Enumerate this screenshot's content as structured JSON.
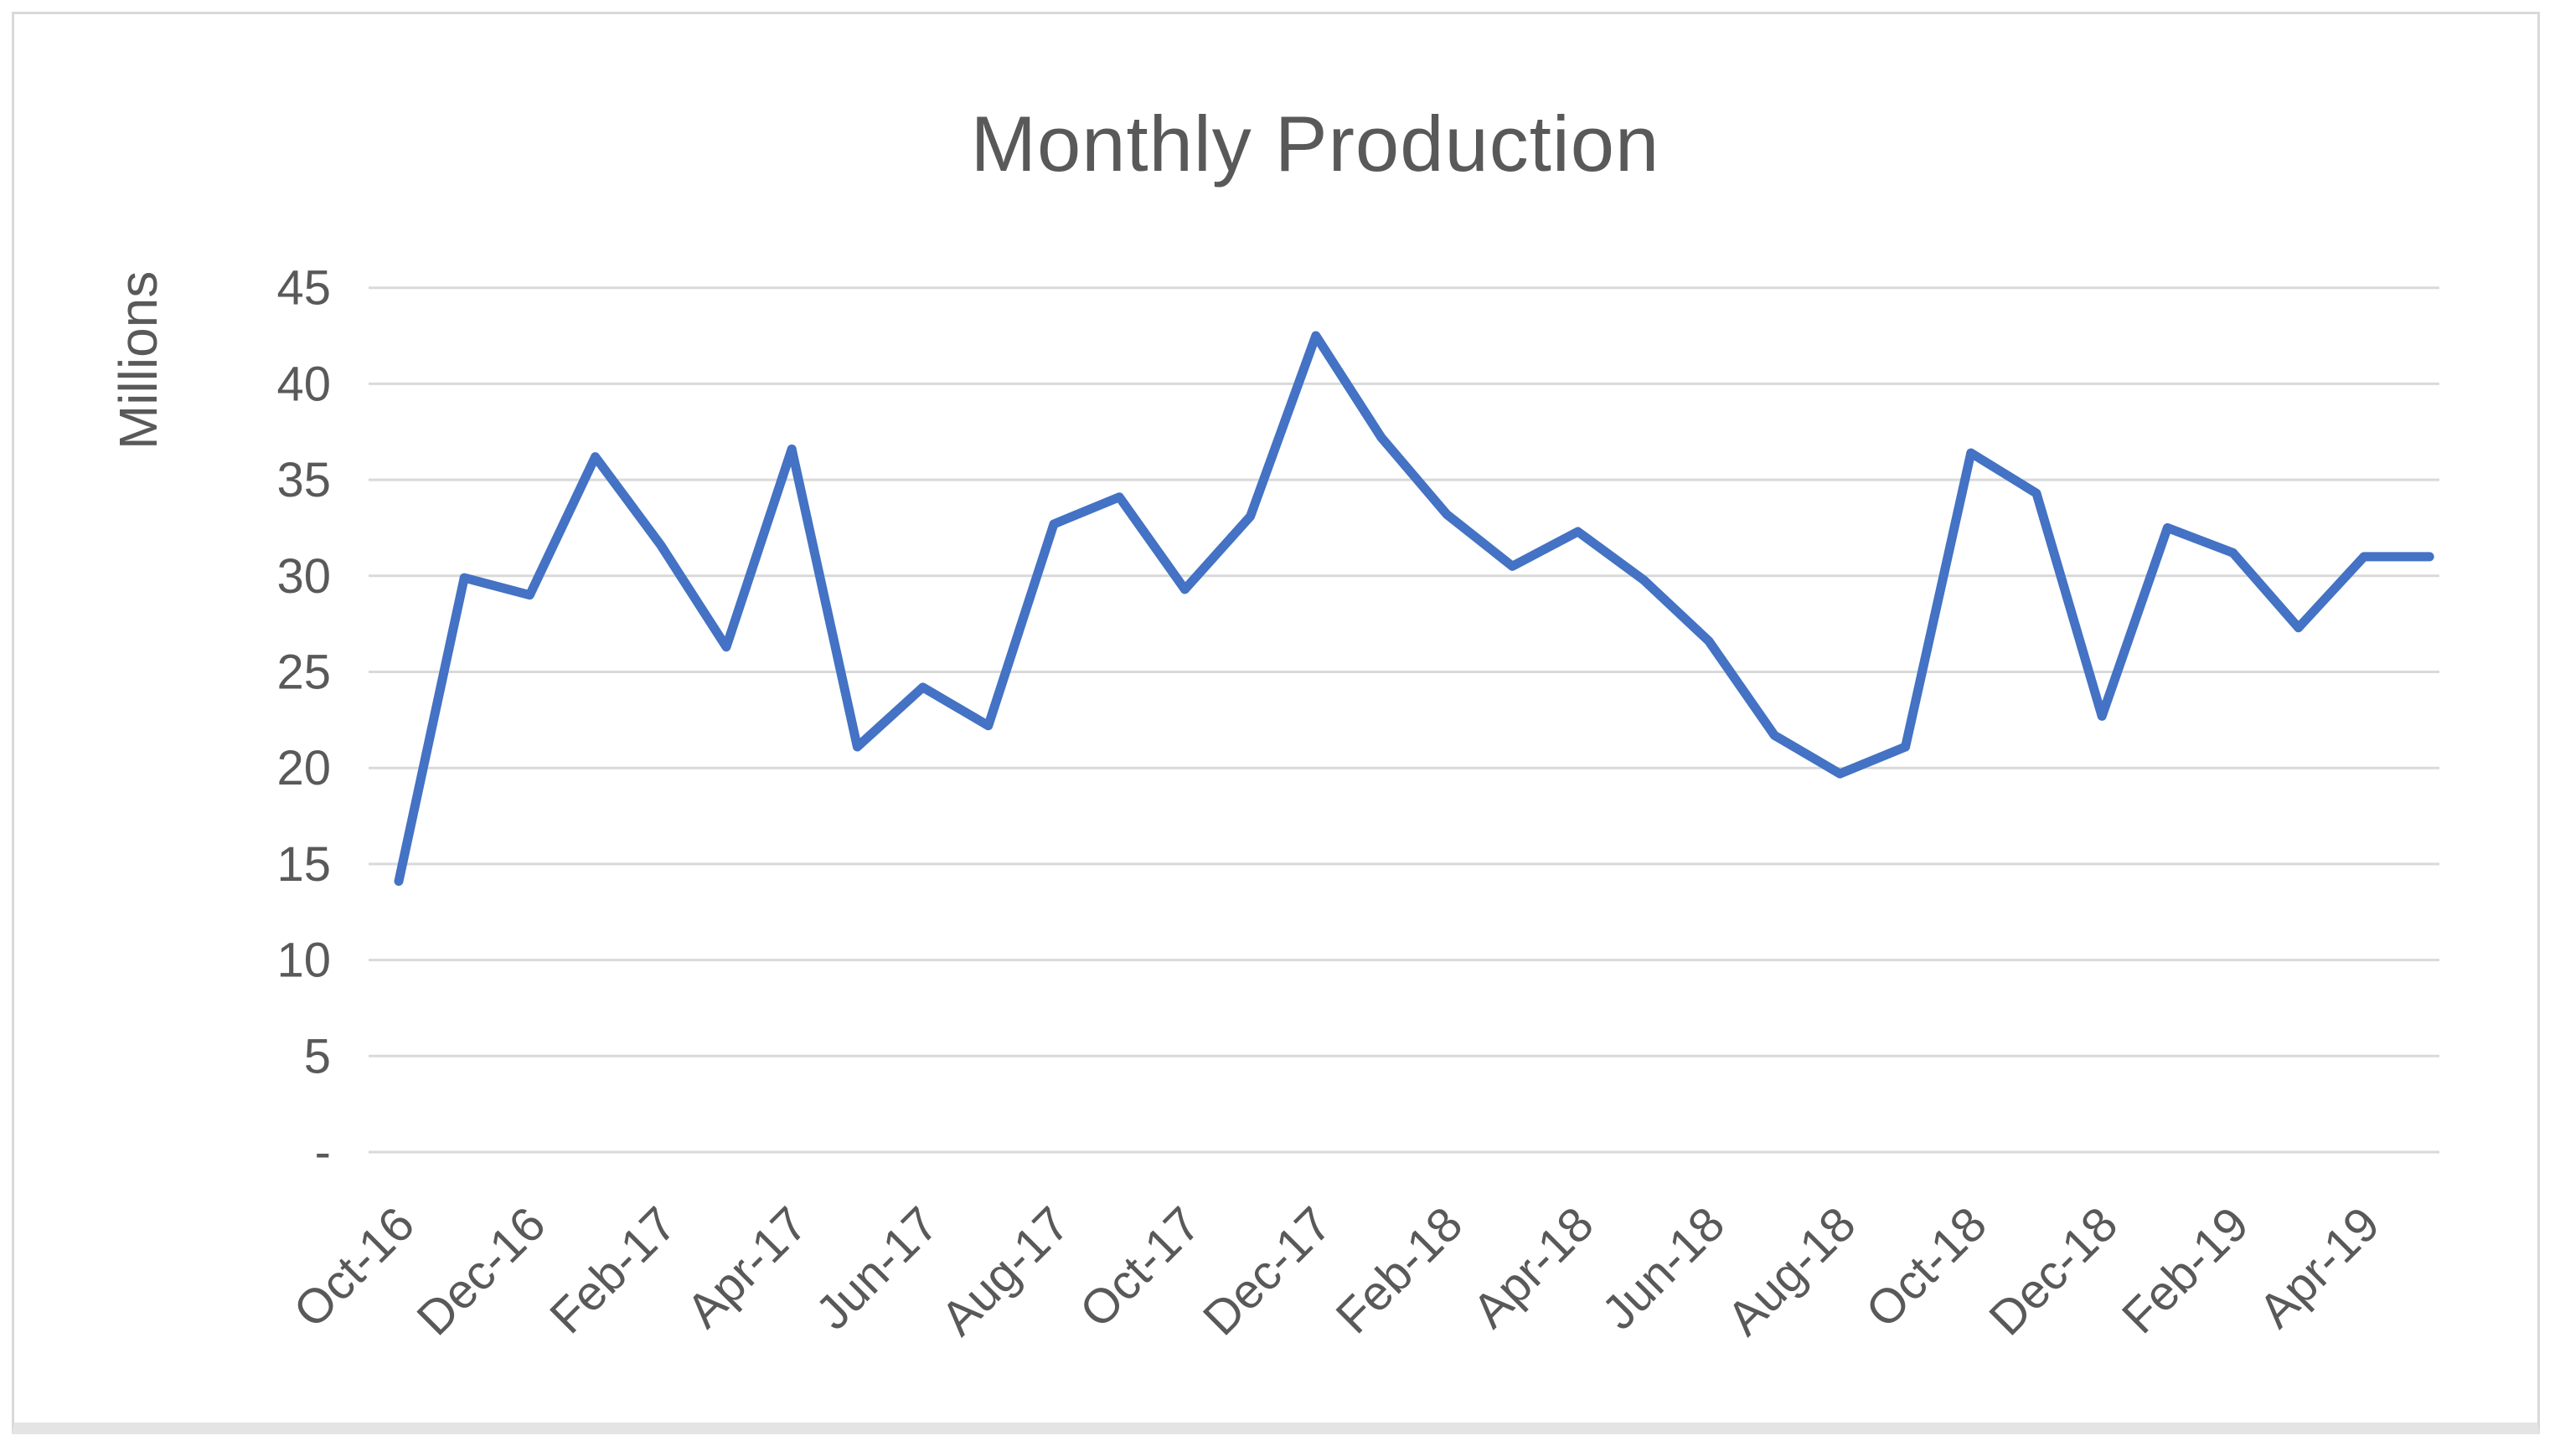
{
  "page": {
    "background_color": "#FFFFFF",
    "frame_border_color": "#D9D9D9",
    "frame_bottom_strip_color": "#E4E4E4"
  },
  "chart_data": {
    "type": "line",
    "title": "Monthly Production",
    "ylabel": "Millions",
    "xlabel": "",
    "legend": "none",
    "grid": "horizontal",
    "ylim": [
      0,
      45
    ],
    "x": [
      "Oct-16",
      "Nov-16",
      "Dec-16",
      "Jan-17",
      "Feb-17",
      "Mar-17",
      "Apr-17",
      "May-17",
      "Jun-17",
      "Jul-17",
      "Aug-17",
      "Sep-17",
      "Oct-17",
      "Nov-17",
      "Dec-17",
      "Jan-18",
      "Feb-18",
      "Mar-18",
      "Apr-18",
      "May-18",
      "Jun-18",
      "Jul-18",
      "Aug-18",
      "Sep-18",
      "Oct-18",
      "Nov-18",
      "Dec-18",
      "Jan-19",
      "Feb-19",
      "Mar-19",
      "Apr-19",
      "May-19"
    ],
    "values": [
      14.1,
      29.9,
      29.0,
      36.2,
      31.6,
      26.3,
      36.6,
      21.1,
      24.2,
      22.2,
      32.7,
      34.1,
      29.3,
      33.1,
      42.5,
      37.2,
      33.2,
      30.5,
      32.3,
      29.8,
      26.6,
      21.7,
      19.7,
      21.1,
      36.4,
      34.3,
      22.7,
      32.5,
      31.2,
      27.3,
      31.0,
      31.0
    ],
    "x_tick_labels": [
      "Oct-16",
      "Dec-16",
      "Feb-17",
      "Apr-17",
      "Jun-17",
      "Aug-17",
      "Oct-17",
      "Dec-17",
      "Feb-18",
      "Apr-18",
      "Jun-18",
      "Aug-18",
      "Oct-18",
      "Dec-18",
      "Feb-19",
      "Apr-19"
    ],
    "x_tick_every": 2,
    "y_ticks": {
      "values": [
        45,
        40,
        35,
        30,
        25,
        20,
        15,
        10,
        5,
        0
      ],
      "labels": [
        "45",
        "40",
        "35",
        "30",
        "25",
        "20",
        "15",
        "10",
        "5",
        "-"
      ]
    },
    "series_color": "#4472C4",
    "gridline_color": "#D9D9D9",
    "text_color": "#595959"
  }
}
